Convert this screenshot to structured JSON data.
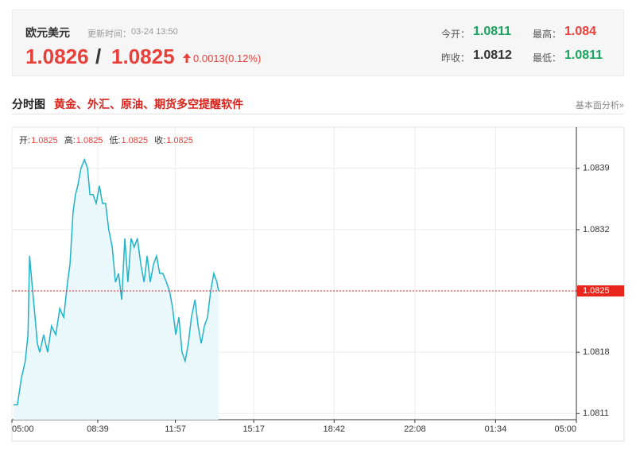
{
  "header": {
    "symbol": "欧元美元",
    "update_label": "更新时间：",
    "update_time": "03-24 13:50",
    "bid": 1.0826,
    "separator": "/",
    "ask": 1.0825,
    "change": "0.0013(0.12%)",
    "stats": [
      {
        "label": "今开：",
        "value": 1.0811,
        "tone": "down"
      },
      {
        "label": "最高：",
        "value": 1.084,
        "tone": "up"
      },
      {
        "label": "昨收：",
        "value": 1.0812,
        "tone": "flat"
      },
      {
        "label": "最低：",
        "value": 1.0811,
        "tone": "down"
      }
    ]
  },
  "section": {
    "title": "分时图",
    "promo": "黄金、外汇、原油、期货多空提醒软件",
    "link": "基本面分析»"
  },
  "chart_data": {
    "type": "area",
    "color": "#1fb3c8",
    "fill_color": "#eaf7fb",
    "ohlc": [
      {
        "label": "开:",
        "value": 1.0825
      },
      {
        "label": "高:",
        "value": 1.0825
      },
      {
        "label": "低:",
        "value": 1.0825
      },
      {
        "label": "收:",
        "value": 1.0825
      }
    ],
    "x": [
      4,
      14,
      24,
      34,
      41,
      45,
      51,
      57,
      65,
      71,
      81,
      91,
      101,
      112,
      122,
      132,
      142,
      148,
      156,
      162,
      168,
      176,
      185,
      193,
      199,
      207,
      215,
      223,
      231,
      239,
      247,
      256,
      264,
      272,
      280,
      288,
      296,
      304,
      312,
      320,
      329,
      337,
      345,
      353,
      361,
      369,
      377,
      385,
      394,
      402,
      410,
      418,
      426,
      434,
      442,
      450,
      458,
      467,
      475,
      483,
      491,
      499,
      507,
      515,
      523,
      527
    ],
    "values": [
      1.0812,
      1.0812,
      1.0815,
      1.0817,
      1.082,
      1.0829,
      1.0826,
      1.0823,
      1.0819,
      1.0818,
      1.082,
      1.0818,
      1.0821,
      1.082,
      1.0823,
      1.0822,
      1.0826,
      1.0828,
      1.0834,
      1.0836,
      1.0837,
      1.0839,
      1.084,
      1.0839,
      1.0836,
      1.0836,
      1.0835,
      1.0837,
      1.0835,
      1.0835,
      1.0832,
      1.083,
      1.0826,
      1.0827,
      1.0824,
      1.0831,
      1.0826,
      1.0831,
      1.083,
      1.0831,
      1.0828,
      1.0826,
      1.0829,
      1.0826,
      1.0828,
      1.0829,
      1.0827,
      1.0827,
      1.0826,
      1.0825,
      1.0823,
      1.082,
      1.0822,
      1.0818,
      1.0817,
      1.0819,
      1.0822,
      1.0824,
      1.0821,
      1.0819,
      1.0821,
      1.0822,
      1.0825,
      1.0827,
      1.0826,
      1.0825
    ],
    "xlim": [
      0,
      1440
    ],
    "xticks": [
      {
        "value": 0,
        "label": "05:00"
      },
      {
        "value": 219,
        "label": "08:39"
      },
      {
        "value": 417,
        "label": "11:57"
      },
      {
        "value": 617,
        "label": "15:17"
      },
      {
        "value": 822,
        "label": "18:42"
      },
      {
        "value": 1028,
        "label": "22:08"
      },
      {
        "value": 1234,
        "label": "01:34"
      },
      {
        "value": 1440,
        "label": "05:00"
      }
    ],
    "ylim": [
      1.08103,
      1.08437
    ],
    "yticks": [
      1.0811,
      1.0818,
      1.0825,
      1.0832,
      1.0839
    ],
    "last_price": 1.0825,
    "last_color": "#e8261b",
    "grid": true
  }
}
